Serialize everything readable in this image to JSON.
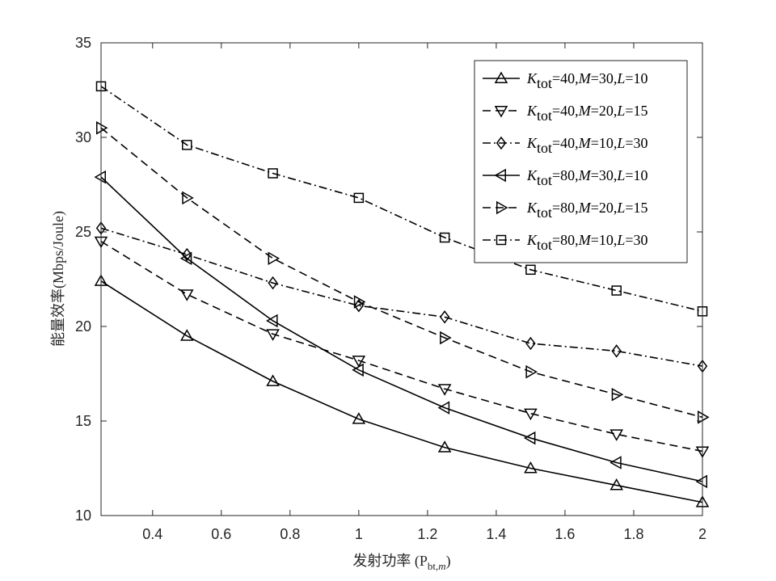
{
  "chart_data": {
    "type": "line",
    "xlabel": "发射功率 (P",
    "xlabel_sub": "bt,m",
    "xlabel_close": ")",
    "ylabel": "能量效率(Mbps/Joule)",
    "xlim": [
      0.25,
      2.0
    ],
    "ylim": [
      10,
      35
    ],
    "xticks": [
      0.4,
      0.6,
      0.8,
      1.0,
      1.2,
      1.4,
      1.6,
      1.8,
      2.0
    ],
    "xtick_labels": [
      "0.4",
      "0.6",
      "0.8",
      "1",
      "1.2",
      "1.4",
      "1.6",
      "1.8",
      "2"
    ],
    "yticks": [
      10,
      15,
      20,
      25,
      30,
      35
    ],
    "ytick_labels": [
      "10",
      "15",
      "20",
      "25",
      "30",
      "35"
    ],
    "grid": false,
    "legend_position": "top-right",
    "x": [
      0.25,
      0.5,
      0.75,
      1.0,
      1.25,
      1.5,
      1.75,
      2.0
    ],
    "series": [
      {
        "name": "Ktot=40,M=30,L=10",
        "label": {
          "K": "K",
          "sub": "tot",
          "p1": "=40,",
          "M": "M",
          "p2": "=30,",
          "L": "L",
          "p3": "=10"
        },
        "marker": "triangle-up",
        "dash": "solid",
        "values": [
          22.4,
          19.5,
          17.1,
          15.1,
          13.6,
          12.5,
          11.6,
          10.7
        ]
      },
      {
        "name": "Ktot=40,M=20,L=15",
        "label": {
          "K": "K",
          "sub": "tot",
          "p1": "=40,",
          "M": "M",
          "p2": "=20,",
          "L": "L",
          "p3": "=15"
        },
        "marker": "triangle-down",
        "dash": "dashed",
        "values": [
          24.5,
          21.7,
          19.6,
          18.2,
          16.7,
          15.4,
          14.3,
          13.4
        ]
      },
      {
        "name": "Ktot=40,M=10,L=30",
        "label": {
          "K": "K",
          "sub": "tot",
          "p1": "=40,",
          "M": "M",
          "p2": "=10,",
          "L": "L",
          "p3": "=30"
        },
        "marker": "diamond",
        "dash": "dashdot",
        "values": [
          25.2,
          23.8,
          22.3,
          21.1,
          20.5,
          19.1,
          18.7,
          17.9
        ]
      },
      {
        "name": "Ktot=80,M=30,L=10",
        "label": {
          "K": "K",
          "sub": "tot",
          "p1": "=80,",
          "M": "M",
          "p2": "=30,",
          "L": "L",
          "p3": "=10"
        },
        "marker": "triangle-left",
        "dash": "solid",
        "values": [
          27.9,
          23.6,
          20.3,
          17.7,
          15.7,
          14.1,
          12.8,
          11.8
        ]
      },
      {
        "name": "Ktot=80,M=20,L=15",
        "label": {
          "K": "K",
          "sub": "tot",
          "p1": "=80,",
          "M": "M",
          "p2": "=20,",
          "L": "L",
          "p3": "=15"
        },
        "marker": "triangle-right",
        "dash": "dashed",
        "values": [
          30.5,
          26.8,
          23.6,
          21.3,
          19.4,
          17.6,
          16.4,
          15.2
        ]
      },
      {
        "name": "Ktot=80,M=10,L=30",
        "label": {
          "K": "K",
          "sub": "tot",
          "p1": "=80,",
          "M": "M",
          "p2": "=10,",
          "L": "L",
          "p3": "=30"
        },
        "marker": "square",
        "dash": "dashdot",
        "values": [
          32.7,
          29.6,
          28.1,
          26.8,
          24.7,
          23.0,
          21.9,
          20.8
        ]
      }
    ]
  }
}
